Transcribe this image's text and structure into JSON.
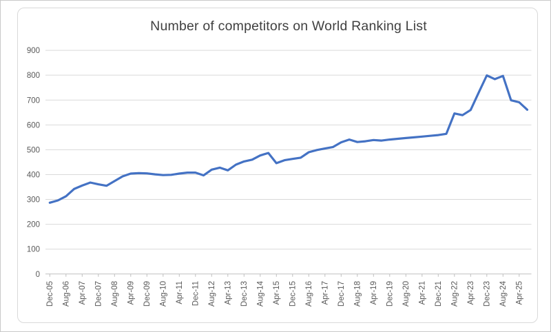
{
  "window": {
    "background_color": "#ffffff",
    "border_color": "#c9c9c9"
  },
  "chart": {
    "title": "Number of competitors on World Ranking List",
    "title_color": "#404040",
    "frame_border_color": "#d9d9d9",
    "line_color": "#4472c4",
    "gridline_color": "#d9d9d9",
    "axis_line_color": "#bfbfbf",
    "tick_label_color": "#595959"
  },
  "chart_data": {
    "type": "line",
    "title": "Number of competitors on World Ranking List",
    "xlabel": "",
    "ylabel": "",
    "ylim": [
      0,
      900
    ],
    "ytick_interval": 100,
    "ytick_labels": [
      "0",
      "100",
      "200",
      "300",
      "400",
      "500",
      "600",
      "700",
      "800",
      "900"
    ],
    "grid": "horizontal",
    "legend": "none",
    "x_label_interval": 2,
    "x_labels_shown": [
      "Dec-05",
      "Aug-06",
      "Apr-07",
      "Dec-07",
      "Aug-08",
      "Apr-09",
      "Dec-09",
      "Aug-10",
      "Apr-11",
      "Dec-11",
      "Aug-12",
      "Apr-13",
      "Dec-13",
      "Aug-14",
      "Apr-15",
      "Dec-15",
      "Aug-16",
      "Apr-17",
      "Dec-17",
      "Aug-18",
      "Apr-19",
      "Dec-19",
      "Aug-20",
      "Apr-21",
      "Dec-21",
      "Aug-22",
      "Apr-23",
      "Dec-23",
      "Aug-24",
      "Apr-25"
    ],
    "categories": [
      "Dec-05",
      "Apr-06",
      "Aug-06",
      "Dec-06",
      "Apr-07",
      "Aug-07",
      "Dec-07",
      "Apr-08",
      "Aug-08",
      "Dec-08",
      "Apr-09",
      "Aug-09",
      "Dec-09",
      "Apr-10",
      "Aug-10",
      "Dec-10",
      "Apr-11",
      "Aug-11",
      "Dec-11",
      "Apr-12",
      "Aug-12",
      "Dec-12",
      "Apr-13",
      "Aug-13",
      "Dec-13",
      "Apr-14",
      "Aug-14",
      "Dec-14",
      "Apr-15",
      "Aug-15",
      "Dec-15",
      "Apr-16",
      "Aug-16",
      "Dec-16",
      "Apr-17",
      "Aug-17",
      "Dec-17",
      "Apr-18",
      "Aug-18",
      "Dec-18",
      "Apr-19",
      "Aug-19",
      "Dec-19",
      "Apr-20",
      "Aug-20",
      "Dec-20",
      "Apr-21",
      "Aug-21",
      "Dec-21",
      "Apr-22",
      "Aug-22",
      "Dec-22",
      "Apr-23",
      "Aug-23",
      "Dec-23",
      "Apr-24",
      "Aug-24",
      "Dec-24",
      "Apr-25",
      "Aug-25"
    ],
    "values": [
      287,
      296,
      313,
      342,
      356,
      368,
      361,
      355,
      374,
      393,
      404,
      406,
      405,
      401,
      398,
      399,
      404,
      408,
      408,
      397,
      420,
      428,
      417,
      440,
      453,
      460,
      477,
      487,
      446,
      458,
      463,
      468,
      490,
      499,
      505,
      511,
      530,
      541,
      531,
      534,
      539,
      537,
      541,
      544,
      547,
      550,
      553,
      556,
      559,
      564,
      646,
      639,
      660,
      730,
      799,
      784,
      797,
      699,
      691,
      661
    ]
  }
}
